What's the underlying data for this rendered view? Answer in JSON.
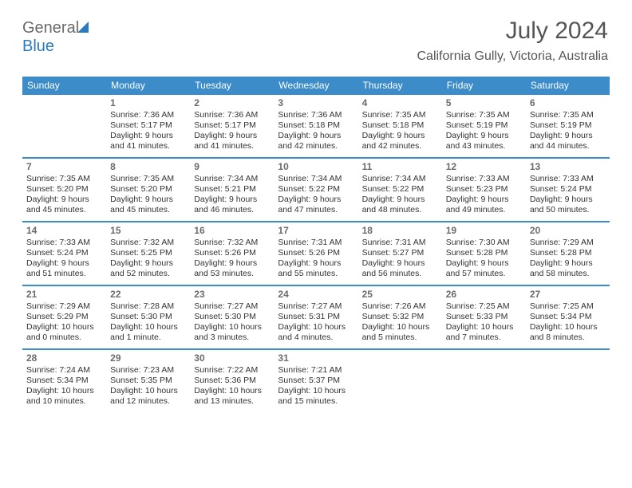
{
  "brand": {
    "word1": "General",
    "word2": "Blue"
  },
  "title": "July 2024",
  "subtitle": "California Gully, Victoria, Australia",
  "colors": {
    "header_bg": "#3b8cc9",
    "header_text": "#ffffff",
    "rule": "#3b8cc9",
    "daynum": "#6b6b6b",
    "body": "#333333",
    "background": "#ffffff",
    "brand_gray": "#6a6a6a",
    "brand_blue": "#2a7bbf"
  },
  "typography": {
    "title_fontsize": 30,
    "subtitle_fontsize": 16,
    "header_fontsize": 12,
    "daynum_fontsize": 12,
    "body_fontsize": 10.5,
    "font_family": "Arial"
  },
  "layout": {
    "columns": 7,
    "rows": 5,
    "first_weekday_index": 1
  },
  "weekdays": [
    "Sunday",
    "Monday",
    "Tuesday",
    "Wednesday",
    "Thursday",
    "Friday",
    "Saturday"
  ],
  "days": [
    {
      "n": 1,
      "sunrise": "7:36 AM",
      "sunset": "5:17 PM",
      "daylight": "9 hours and 41 minutes."
    },
    {
      "n": 2,
      "sunrise": "7:36 AM",
      "sunset": "5:17 PM",
      "daylight": "9 hours and 41 minutes."
    },
    {
      "n": 3,
      "sunrise": "7:36 AM",
      "sunset": "5:18 PM",
      "daylight": "9 hours and 42 minutes."
    },
    {
      "n": 4,
      "sunrise": "7:35 AM",
      "sunset": "5:18 PM",
      "daylight": "9 hours and 42 minutes."
    },
    {
      "n": 5,
      "sunrise": "7:35 AM",
      "sunset": "5:19 PM",
      "daylight": "9 hours and 43 minutes."
    },
    {
      "n": 6,
      "sunrise": "7:35 AM",
      "sunset": "5:19 PM",
      "daylight": "9 hours and 44 minutes."
    },
    {
      "n": 7,
      "sunrise": "7:35 AM",
      "sunset": "5:20 PM",
      "daylight": "9 hours and 45 minutes."
    },
    {
      "n": 8,
      "sunrise": "7:35 AM",
      "sunset": "5:20 PM",
      "daylight": "9 hours and 45 minutes."
    },
    {
      "n": 9,
      "sunrise": "7:34 AM",
      "sunset": "5:21 PM",
      "daylight": "9 hours and 46 minutes."
    },
    {
      "n": 10,
      "sunrise": "7:34 AM",
      "sunset": "5:22 PM",
      "daylight": "9 hours and 47 minutes."
    },
    {
      "n": 11,
      "sunrise": "7:34 AM",
      "sunset": "5:22 PM",
      "daylight": "9 hours and 48 minutes."
    },
    {
      "n": 12,
      "sunrise": "7:33 AM",
      "sunset": "5:23 PM",
      "daylight": "9 hours and 49 minutes."
    },
    {
      "n": 13,
      "sunrise": "7:33 AM",
      "sunset": "5:24 PM",
      "daylight": "9 hours and 50 minutes."
    },
    {
      "n": 14,
      "sunrise": "7:33 AM",
      "sunset": "5:24 PM",
      "daylight": "9 hours and 51 minutes."
    },
    {
      "n": 15,
      "sunrise": "7:32 AM",
      "sunset": "5:25 PM",
      "daylight": "9 hours and 52 minutes."
    },
    {
      "n": 16,
      "sunrise": "7:32 AM",
      "sunset": "5:26 PM",
      "daylight": "9 hours and 53 minutes."
    },
    {
      "n": 17,
      "sunrise": "7:31 AM",
      "sunset": "5:26 PM",
      "daylight": "9 hours and 55 minutes."
    },
    {
      "n": 18,
      "sunrise": "7:31 AM",
      "sunset": "5:27 PM",
      "daylight": "9 hours and 56 minutes."
    },
    {
      "n": 19,
      "sunrise": "7:30 AM",
      "sunset": "5:28 PM",
      "daylight": "9 hours and 57 minutes."
    },
    {
      "n": 20,
      "sunrise": "7:29 AM",
      "sunset": "5:28 PM",
      "daylight": "9 hours and 58 minutes."
    },
    {
      "n": 21,
      "sunrise": "7:29 AM",
      "sunset": "5:29 PM",
      "daylight": "10 hours and 0 minutes."
    },
    {
      "n": 22,
      "sunrise": "7:28 AM",
      "sunset": "5:30 PM",
      "daylight": "10 hours and 1 minute."
    },
    {
      "n": 23,
      "sunrise": "7:27 AM",
      "sunset": "5:30 PM",
      "daylight": "10 hours and 3 minutes."
    },
    {
      "n": 24,
      "sunrise": "7:27 AM",
      "sunset": "5:31 PM",
      "daylight": "10 hours and 4 minutes."
    },
    {
      "n": 25,
      "sunrise": "7:26 AM",
      "sunset": "5:32 PM",
      "daylight": "10 hours and 5 minutes."
    },
    {
      "n": 26,
      "sunrise": "7:25 AM",
      "sunset": "5:33 PM",
      "daylight": "10 hours and 7 minutes."
    },
    {
      "n": 27,
      "sunrise": "7:25 AM",
      "sunset": "5:34 PM",
      "daylight": "10 hours and 8 minutes."
    },
    {
      "n": 28,
      "sunrise": "7:24 AM",
      "sunset": "5:34 PM",
      "daylight": "10 hours and 10 minutes."
    },
    {
      "n": 29,
      "sunrise": "7:23 AM",
      "sunset": "5:35 PM",
      "daylight": "10 hours and 12 minutes."
    },
    {
      "n": 30,
      "sunrise": "7:22 AM",
      "sunset": "5:36 PM",
      "daylight": "10 hours and 13 minutes."
    },
    {
      "n": 31,
      "sunrise": "7:21 AM",
      "sunset": "5:37 PM",
      "daylight": "10 hours and 15 minutes."
    }
  ],
  "labels": {
    "sunrise": "Sunrise:",
    "sunset": "Sunset:",
    "daylight": "Daylight:"
  }
}
